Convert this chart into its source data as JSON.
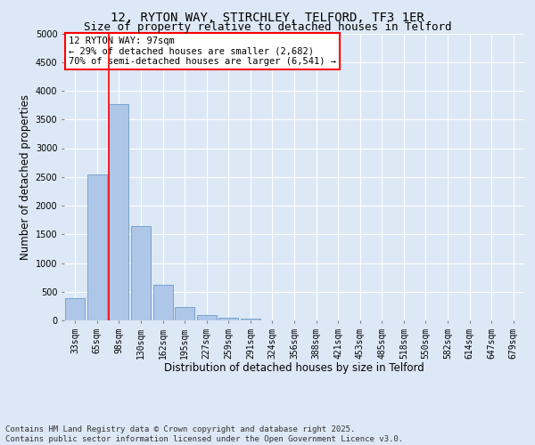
{
  "title_line1": "12, RYTON WAY, STIRCHLEY, TELFORD, TF3 1ER",
  "title_line2": "Size of property relative to detached houses in Telford",
  "xlabel": "Distribution of detached houses by size in Telford",
  "ylabel": "Number of detached properties",
  "footnote": "Contains HM Land Registry data © Crown copyright and database right 2025.\nContains public sector information licensed under the Open Government Licence v3.0.",
  "categories": [
    "33sqm",
    "65sqm",
    "98sqm",
    "130sqm",
    "162sqm",
    "195sqm",
    "227sqm",
    "259sqm",
    "291sqm",
    "324sqm",
    "356sqm",
    "388sqm",
    "421sqm",
    "453sqm",
    "485sqm",
    "518sqm",
    "550sqm",
    "582sqm",
    "614sqm",
    "647sqm",
    "679sqm"
  ],
  "values": [
    380,
    2550,
    3760,
    1650,
    620,
    240,
    95,
    45,
    35,
    0,
    0,
    0,
    0,
    0,
    0,
    0,
    0,
    0,
    0,
    0,
    0
  ],
  "bar_color": "#aec6e8",
  "bar_edge_color": "#5a8fc4",
  "vline_color": "red",
  "vline_x_index": 1.55,
  "annotation_text": "12 RYTON WAY: 97sqm\n← 29% of detached houses are smaller (2,682)\n70% of semi-detached houses are larger (6,541) →",
  "annotation_box_color": "white",
  "annotation_box_edge_color": "red",
  "ylim": [
    0,
    5000
  ],
  "yticks": [
    0,
    500,
    1000,
    1500,
    2000,
    2500,
    3000,
    3500,
    4000,
    4500,
    5000
  ],
  "background_color": "#dce8f5",
  "plot_bg_color": "#dce8f5",
  "title_fontsize": 10,
  "subtitle_fontsize": 9,
  "tick_fontsize": 7,
  "label_fontsize": 8.5,
  "footnote_fontsize": 6.5,
  "annotation_fontsize": 7.5
}
